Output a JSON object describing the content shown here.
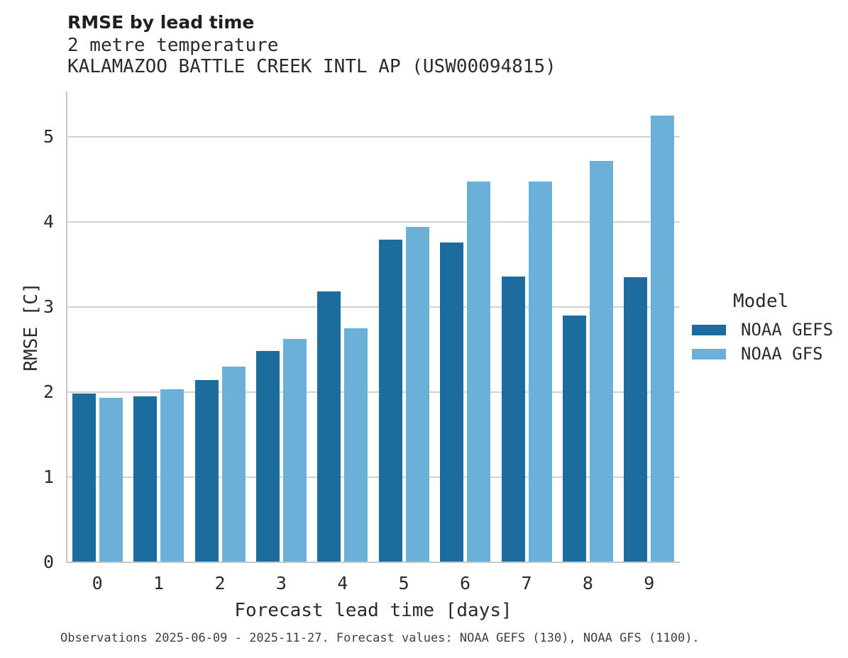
{
  "header": {
    "title": "RMSE by lead time",
    "subtitle_line1": "2 metre temperature",
    "subtitle_line2": "KALAMAZOO BATTLE CREEK INTL AP (USW00094815)"
  },
  "chart_data": {
    "type": "bar",
    "title": "RMSE by lead time",
    "subtitle": [
      "2 metre temperature",
      "KALAMAZOO BATTLE CREEK INTL AP (USW00094815)"
    ],
    "categories": [
      "0",
      "1",
      "2",
      "3",
      "4",
      "5",
      "6",
      "7",
      "8",
      "9"
    ],
    "series": [
      {
        "name": "NOAA GEFS",
        "color": "#1c6d9d",
        "values": [
          1.98,
          1.95,
          2.14,
          2.48,
          3.18,
          3.79,
          3.76,
          3.36,
          2.9,
          3.35
        ]
      },
      {
        "name": "NOAA GFS",
        "color": "#6bb0d9",
        "values": [
          1.93,
          2.03,
          2.3,
          2.62,
          2.75,
          3.94,
          4.47,
          4.47,
          4.71,
          5.25
        ]
      }
    ],
    "xlabel": "Forecast lead time [days]",
    "ylabel": "RMSE [C]",
    "ylim": [
      0,
      5.53
    ],
    "yticks": [
      0,
      1,
      2,
      3,
      4,
      5
    ],
    "grid": "horizontal",
    "legend": {
      "title": "Model",
      "position": "right"
    }
  },
  "footer": {
    "caption": "Observations 2025-06-09 - 2025-11-27. Forecast values: NOAA GEFS (130), NOAA GFS (1100)."
  },
  "colors": {
    "bar_dark": "#1c6d9d",
    "bar_light": "#6bb0d9",
    "gridline": "#d2d2d2",
    "spine": "#c8c8c8",
    "text": "#2b2b2b",
    "caption_text": "#3f3f3f"
  }
}
